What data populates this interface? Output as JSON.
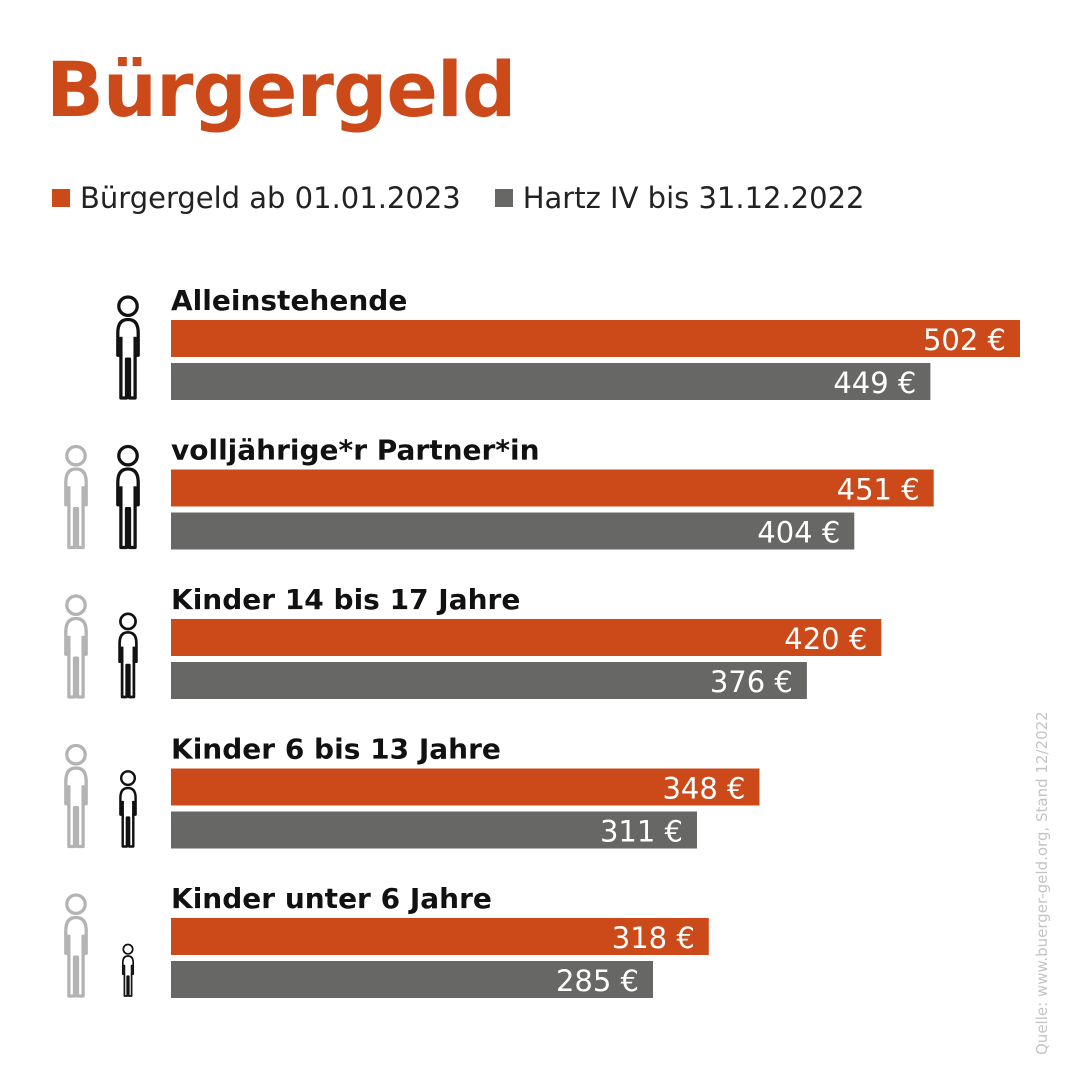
{
  "title": "Bürgergeld",
  "colors": {
    "buergergeld": "#cc4a1a",
    "hartz": "#676766",
    "title": "#cc4a1a",
    "icon_active": "#111111",
    "icon_muted": "#b3b3b3",
    "source": "#c4c4c4"
  },
  "legend": {
    "buergergeld": "Bürgergeld ab 01.01.2023",
    "hartz": "Hartz IV bis 31.12.2022"
  },
  "source": "Quelle: www.buerger-geld.org, Stand 12/2022",
  "chart_data": {
    "type": "bar",
    "orientation": "horizontal",
    "categories": [
      "Alleinstehende",
      "volljährige*r Partner*in",
      "Kinder 14 bis 17 Jahre",
      "Kinder 6 bis 13 Jahre",
      "Kinder unter 6 Jahre"
    ],
    "series": [
      {
        "name": "Bürgergeld ab 01.01.2023",
        "values": [
          502,
          451,
          420,
          348,
          318
        ],
        "labels": [
          "502 €",
          "451 €",
          "420 €",
          "348 €",
          "318 €"
        ]
      },
      {
        "name": "Hartz IV bis 31.12.2022",
        "values": [
          449,
          404,
          376,
          311,
          285
        ],
        "labels": [
          "449 €",
          "404 €",
          "376 €",
          "311 €",
          "285 €"
        ]
      }
    ],
    "unit": "€",
    "legend_position": "top-left",
    "grid": false,
    "icons": [
      "single-adult-icon",
      "adult-partner-icon",
      "teen-child-icon",
      "child-icon",
      "small-child-icon"
    ]
  }
}
